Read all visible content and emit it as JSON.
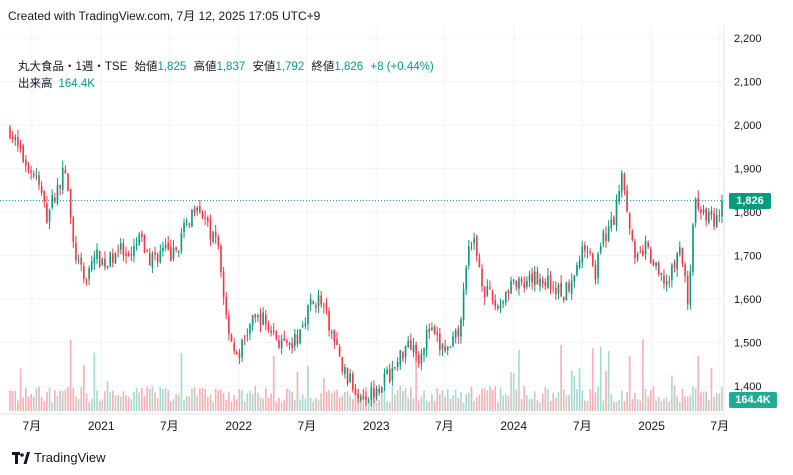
{
  "caption": "Created with TradingView.com, 7月 12, 2025 17:05 UTC+9",
  "legend": {
    "symbol": "丸大食品・1週・TSE",
    "open_label": "始値",
    "open": "1,825",
    "high_label": "高値",
    "high": "1,837",
    "low_label": "安値",
    "low": "1,792",
    "close_label": "終値",
    "close": "1,826",
    "change": "+8 (+0.44%)",
    "volume_label": "出来高",
    "volume": "164.4K"
  },
  "price_tag": "1,826",
  "volume_tag": "164.4K",
  "brand": "TradingView",
  "colors": {
    "up": "#089981",
    "down": "#f23645",
    "vol_up": "#a8d9cf",
    "vol_down": "#f7b0b5",
    "grid": "#f0f3fa"
  },
  "chart_data": {
    "type": "candlestick",
    "interval": "1 week",
    "ylim": [
      1340,
      2230
    ],
    "y_ticks": [
      "2,200",
      "2,100",
      "2,000",
      "1,900",
      "1,800",
      "1,700",
      "1,600",
      "1,500",
      "1,400"
    ],
    "y_tick_values": [
      2200,
      2100,
      2000,
      1900,
      1800,
      1700,
      1600,
      1500,
      1400
    ],
    "x_ticks": [
      "7月",
      "2021",
      "7月",
      "2022",
      "7月",
      "2023",
      "7月",
      "2024",
      "7月",
      "2025",
      "7月"
    ],
    "x_tick_dates": [
      "2020-07-01",
      "2021-01-01",
      "2021-07-01",
      "2022-01-01",
      "2022-07-01",
      "2023-01-01",
      "2023-07-01",
      "2024-01-01",
      "2024-07-01",
      "2025-01-01",
      "2025-07-01"
    ],
    "last_close": 1826,
    "series_start": "2020-05-04",
    "close_path": [
      [
        "2020-05-04",
        1990
      ],
      [
        "2020-06-01",
        1930
      ],
      [
        "2020-07-13",
        1880
      ],
      [
        "2020-08-10",
        1790
      ],
      [
        "2020-08-31",
        1840
      ],
      [
        "2020-09-28",
        1900
      ],
      [
        "2020-10-19",
        1720
      ],
      [
        "2020-11-16",
        1640
      ],
      [
        "2020-12-14",
        1700
      ],
      [
        "2021-01-18",
        1680
      ],
      [
        "2021-02-15",
        1720
      ],
      [
        "2021-03-15",
        1680
      ],
      [
        "2021-04-12",
        1740
      ],
      [
        "2021-05-10",
        1690
      ],
      [
        "2021-06-14",
        1710
      ],
      [
        "2021-07-12",
        1700
      ],
      [
        "2021-08-16",
        1770
      ],
      [
        "2021-09-13",
        1830
      ],
      [
        "2021-10-11",
        1760
      ],
      [
        "2021-11-08",
        1720
      ],
      [
        "2021-11-29",
        1560
      ],
      [
        "2021-12-27",
        1460
      ],
      [
        "2022-01-31",
        1540
      ],
      [
        "2022-02-28",
        1560
      ],
      [
        "2022-04-04",
        1520
      ],
      [
        "2022-05-09",
        1480
      ],
      [
        "2022-06-06",
        1510
      ],
      [
        "2022-07-04",
        1580
      ],
      [
        "2022-08-01",
        1600
      ],
      [
        "2022-08-29",
        1540
      ],
      [
        "2022-10-03",
        1440
      ],
      [
        "2022-11-07",
        1390
      ],
      [
        "2022-12-12",
        1380
      ],
      [
        "2023-01-16",
        1410
      ],
      [
        "2023-02-20",
        1440
      ],
      [
        "2023-03-27",
        1510
      ],
      [
        "2023-04-24",
        1470
      ],
      [
        "2023-05-22",
        1530
      ],
      [
        "2023-06-19",
        1490
      ],
      [
        "2023-07-17",
        1480
      ],
      [
        "2023-08-14",
        1540
      ],
      [
        "2023-08-28",
        1690
      ],
      [
        "2023-09-18",
        1730
      ],
      [
        "2023-10-16",
        1620
      ],
      [
        "2023-11-20",
        1580
      ],
      [
        "2023-12-25",
        1640
      ],
      [
        "2024-01-29",
        1620
      ],
      [
        "2024-02-26",
        1650
      ],
      [
        "2024-04-01",
        1640
      ],
      [
        "2024-05-13",
        1610
      ],
      [
        "2024-06-17",
        1680
      ],
      [
        "2024-07-15",
        1730
      ],
      [
        "2024-08-05",
        1660
      ],
      [
        "2024-08-26",
        1740
      ],
      [
        "2024-09-23",
        1780
      ],
      [
        "2024-10-14",
        1900
      ],
      [
        "2024-10-28",
        1820
      ],
      [
        "2024-11-18",
        1680
      ],
      [
        "2024-12-16",
        1720
      ],
      [
        "2025-01-20",
        1650
      ],
      [
        "2025-02-17",
        1640
      ],
      [
        "2025-03-17",
        1720
      ],
      [
        "2025-04-07",
        1600
      ],
      [
        "2025-04-28",
        1830
      ],
      [
        "2025-05-26",
        1790
      ],
      [
        "2025-06-23",
        1780
      ],
      [
        "2025-07-07",
        1826
      ]
    ],
    "volume_ylim": [
      0,
      160000
    ]
  }
}
